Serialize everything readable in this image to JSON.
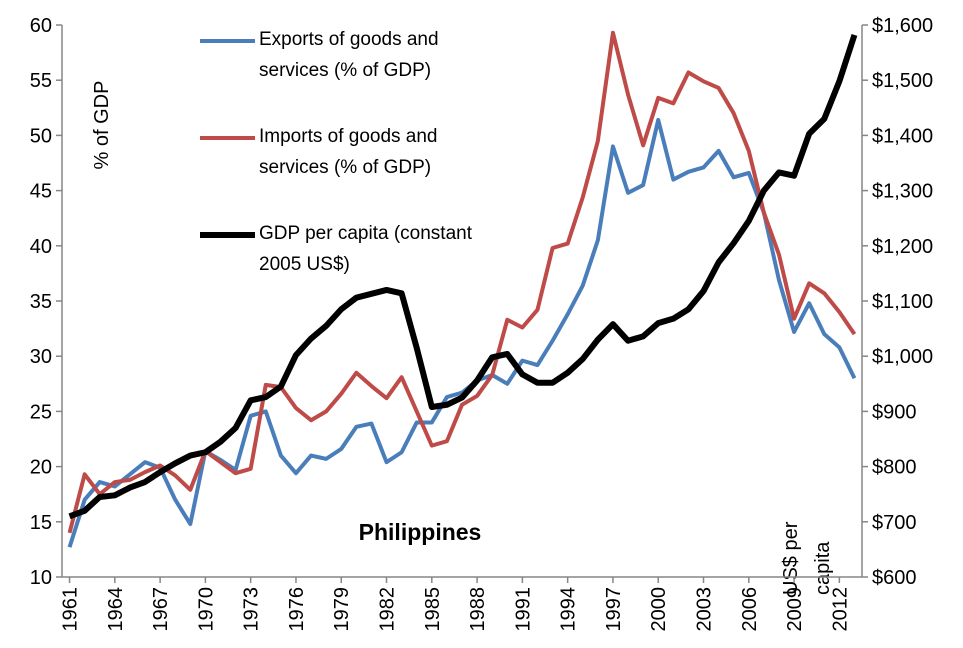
{
  "chart_data": {
    "type": "line",
    "annotation": "Philippines",
    "y_label": "% of GDP",
    "y2_label": [
      "US$ per",
      "capita"
    ],
    "x": [
      1961,
      1962,
      1963,
      1964,
      1965,
      1966,
      1967,
      1968,
      1969,
      1970,
      1971,
      1972,
      1973,
      1974,
      1975,
      1976,
      1977,
      1978,
      1979,
      1980,
      1981,
      1982,
      1983,
      1984,
      1985,
      1986,
      1987,
      1988,
      1989,
      1990,
      1991,
      1992,
      1993,
      1994,
      1995,
      1996,
      1997,
      1998,
      1999,
      2000,
      2001,
      2002,
      2003,
      2004,
      2005,
      2006,
      2007,
      2008,
      2009,
      2010,
      2011,
      2012,
      2013
    ],
    "xlim": [
      1960.5,
      2013.5
    ],
    "xticks": [
      1961,
      1964,
      1967,
      1970,
      1973,
      1976,
      1979,
      1982,
      1985,
      1988,
      1991,
      1994,
      1997,
      2000,
      2003,
      2006,
      2009,
      2012
    ],
    "ylim": [
      10,
      60
    ],
    "yticks": [
      10,
      15,
      20,
      25,
      30,
      35,
      40,
      45,
      50,
      55,
      60
    ],
    "y2lim": [
      600,
      1600
    ],
    "y2ticks": [
      {
        "value": 600,
        "label": "$600"
      },
      {
        "value": 700,
        "label": "$700"
      },
      {
        "value": 800,
        "label": "$800"
      },
      {
        "value": 900,
        "label": "$900"
      },
      {
        "value": 1000,
        "label": "$1,000"
      },
      {
        "value": 1100,
        "label": "$1,100"
      },
      {
        "value": 1200,
        "label": "$1,200"
      },
      {
        "value": 1300,
        "label": "$1,300"
      },
      {
        "value": 1400,
        "label": "$1,400"
      },
      {
        "value": 1500,
        "label": "$1,500"
      },
      {
        "value": 1600,
        "label": "$1,600"
      }
    ],
    "series": [
      {
        "name": "Exports of goods and services (% of GDP)",
        "color": "#4a7ebb",
        "values": [
          12.7,
          17,
          18.6,
          18.2,
          19.3,
          20.4,
          19.9,
          17,
          14.8,
          21.4,
          20.6,
          19.7,
          24.6,
          25,
          21,
          19.4,
          21,
          20.7,
          21.6,
          23.6,
          23.9,
          20.4,
          21.3,
          24,
          24,
          26.3,
          26.7,
          27.8,
          28.3,
          27.5,
          29.6,
          29.2,
          31.4,
          33.8,
          36.4,
          40.5,
          49,
          44.8,
          45.5,
          51.4,
          46,
          46.7,
          47.1,
          48.6,
          46.2,
          46.6,
          43,
          36.9,
          32.2,
          34.8,
          32,
          30.8,
          28
        ]
      },
      {
        "name": "Imports of goods and services (% of GDP)",
        "color": "#be4b48",
        "values": [
          14,
          19.3,
          17.5,
          18.6,
          18.8,
          19.5,
          20.1,
          19.2,
          17.9,
          21.4,
          20.4,
          19.4,
          19.8,
          27.4,
          27.2,
          25.3,
          24.2,
          25,
          26.6,
          28.5,
          27.3,
          26.2,
          28.1,
          25,
          21.9,
          22.3,
          25.6,
          26.4,
          28.3,
          33.3,
          32.6,
          34.2,
          39.8,
          40.2,
          44.4,
          49.5,
          59.3,
          53.7,
          49.1,
          53.4,
          52.9,
          55.7,
          54.9,
          54.3,
          52,
          48.6,
          43,
          39.2,
          33.4,
          36.6,
          35.7,
          34,
          32
        ]
      },
      {
        "name": "GDP per capita (constant 2005 US$)",
        "color": "#000000",
        "axis": "y2",
        "values": [
          710,
          720,
          745,
          748,
          762,
          772,
          790,
          806,
          820,
          826,
          845,
          870,
          920,
          926,
          945,
          1002,
          1032,
          1055,
          1085,
          1106,
          1113,
          1120,
          1114,
          1015,
          908,
          912,
          925,
          956,
          998,
          1004,
          967,
          952,
          952,
          970,
          995,
          1030,
          1058,
          1028,
          1036,
          1060,
          1068,
          1085,
          1118,
          1170,
          1205,
          1245,
          1300,
          1333,
          1327,
          1403,
          1430,
          1498,
          1582
        ]
      }
    ]
  }
}
